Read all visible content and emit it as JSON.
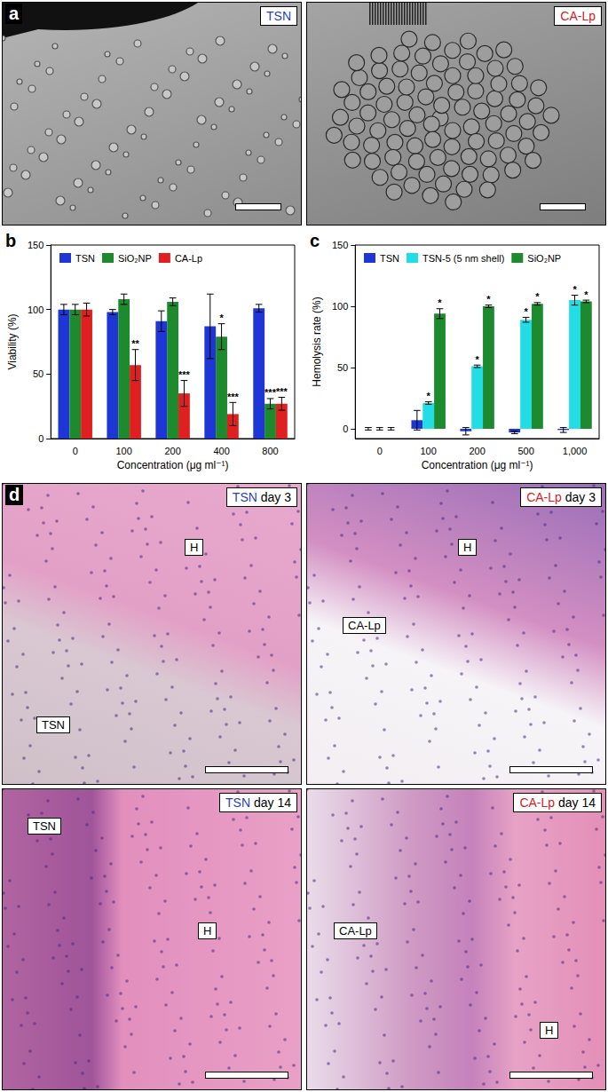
{
  "panel_labels": [
    "a",
    "b",
    "c",
    "d"
  ],
  "panel_a": {
    "images": [
      {
        "tag": "TSN",
        "color": "#2b3fb8"
      },
      {
        "tag": "CA-Lp",
        "color": "#d42020"
      }
    ]
  },
  "chart_data": [
    {
      "type": "bar",
      "x_label": "Concentration (μg ml⁻¹)",
      "y_label": "Viability (%)",
      "categories": [
        "0",
        "100",
        "200",
        "400",
        "800"
      ],
      "series": [
        {
          "name": "TSN",
          "color": "#1f36d6",
          "values": [
            100,
            98,
            91,
            87,
            101
          ],
          "errors": [
            4,
            2,
            8,
            25,
            3
          ],
          "annotations": [
            null,
            null,
            null,
            null,
            null
          ]
        },
        {
          "name": "SiO₂NP",
          "color": "#1e8a2e",
          "values": [
            100,
            108,
            106,
            79,
            27
          ],
          "errors": [
            4,
            4,
            3,
            10,
            4
          ],
          "annotations": [
            null,
            null,
            null,
            "*",
            "***"
          ]
        },
        {
          "name": "CA-Lp",
          "color": "#e02020",
          "values": [
            100,
            57,
            35,
            19,
            27
          ],
          "errors": [
            5,
            12,
            10,
            9,
            5
          ],
          "annotations": [
            null,
            "**",
            "***",
            "***",
            "***"
          ]
        }
      ],
      "ylim": [
        0,
        150
      ],
      "yticks": [
        0,
        50,
        100,
        150
      ],
      "grid": false,
      "legend": "top"
    },
    {
      "type": "bar",
      "x_label": "Concentration (μg ml⁻¹)",
      "y_label": "Hemolysis rate (%)",
      "categories": [
        "0",
        "100",
        "200",
        "500",
        "1,000"
      ],
      "series": [
        {
          "name": "TSN",
          "color": "#1f36d6",
          "values": [
            0,
            7,
            -2,
            -3,
            -1
          ],
          "errors": [
            1,
            8,
            3,
            1,
            2
          ],
          "annotations": [
            null,
            null,
            null,
            null,
            null
          ]
        },
        {
          "name": "TSN-5 (5 nm shell)",
          "color": "#22dde6",
          "values": [
            0,
            21,
            51,
            89,
            105
          ],
          "errors": [
            1,
            1,
            1,
            2,
            4
          ],
          "annotations": [
            null,
            "*",
            "*",
            "*",
            "*"
          ]
        },
        {
          "name": "SiO₂NP",
          "color": "#1e8a2e",
          "values": [
            0,
            94,
            100,
            102,
            104
          ],
          "errors": [
            1,
            4,
            1,
            1,
            1
          ],
          "annotations": [
            null,
            "*",
            "*",
            "*",
            "*"
          ]
        }
      ],
      "ylim": [
        -8,
        150
      ],
      "yticks": [
        0,
        50,
        100,
        150
      ],
      "grid": false,
      "legend": "top"
    }
  ],
  "panel_d": {
    "images": [
      {
        "tag": "TSN",
        "tag_suffix": "day 3",
        "color": "#2b3fb8",
        "regions": [
          "H",
          "TSN"
        ]
      },
      {
        "tag": "CA-Lp",
        "tag_suffix": "day 3",
        "color": "#d42020",
        "regions": [
          "H",
          "CA-Lp"
        ]
      },
      {
        "tag": "TSN",
        "tag_suffix": "day 14",
        "color": "#2b3fb8",
        "regions": [
          "TSN",
          "H"
        ]
      },
      {
        "tag": "CA-Lp",
        "tag_suffix": "day 14",
        "color": "#d42020",
        "regions": [
          "CA-Lp",
          "H"
        ]
      }
    ]
  }
}
